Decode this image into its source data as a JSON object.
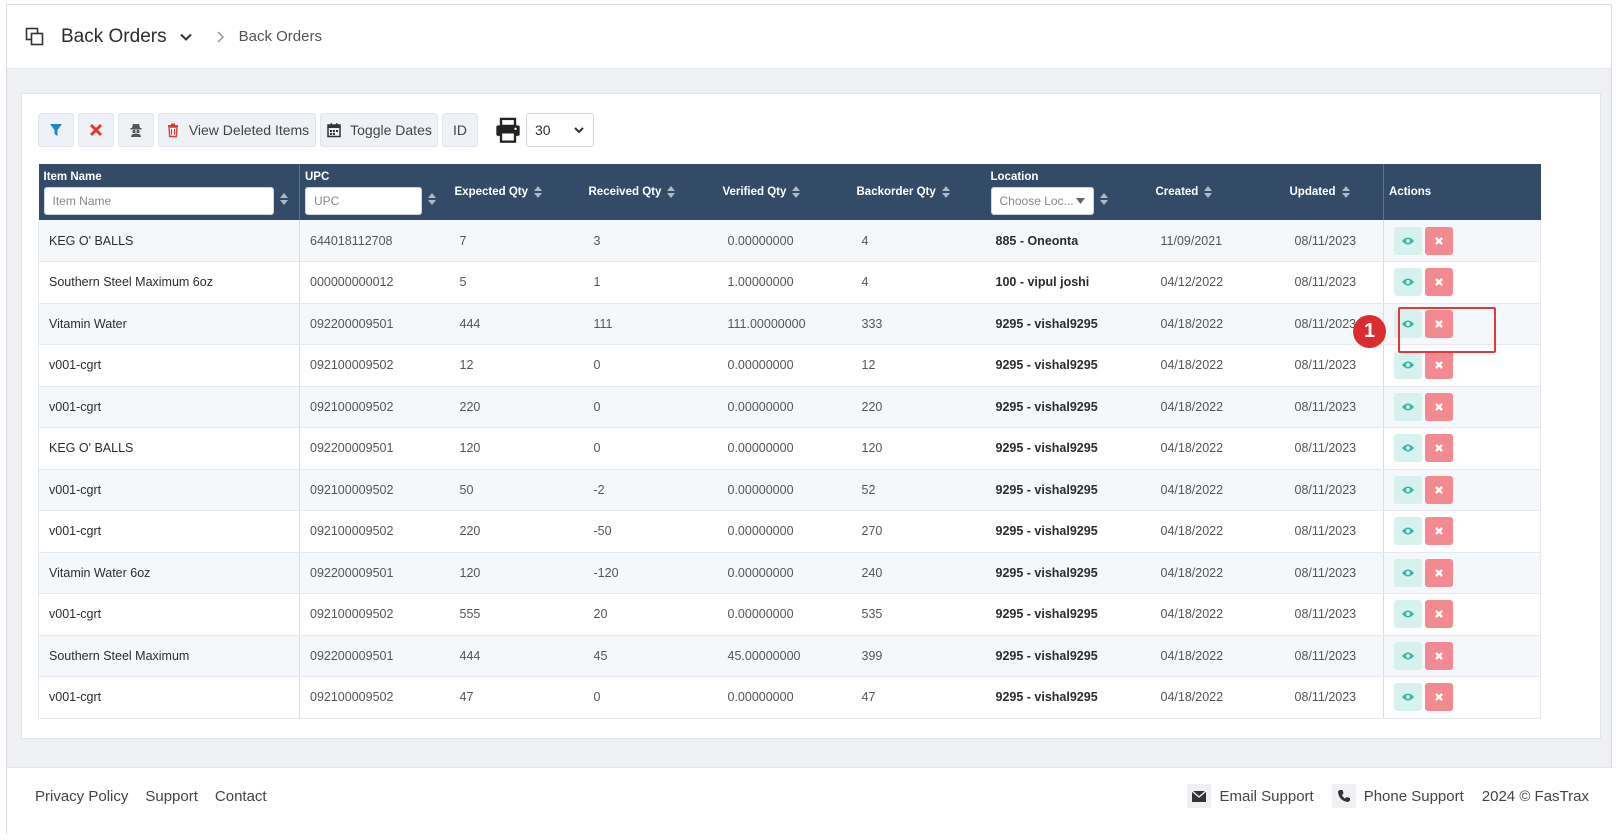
{
  "header": {
    "title": "Back Orders",
    "breadcrumb": "Back Orders"
  },
  "toolbar": {
    "view_deleted_label": "View Deleted Items",
    "toggle_dates_label": "Toggle Dates",
    "id_label": "ID",
    "page_size": "30"
  },
  "table": {
    "columns": {
      "item_name": "Item Name",
      "upc": "UPC",
      "expected": "Expected Qty",
      "received": "Received Qty",
      "verified": "Verified Qty",
      "backorder": "Backorder Qty",
      "location": "Location",
      "created": "Created",
      "updated": "Updated",
      "actions": "Actions"
    },
    "filters": {
      "item_name_placeholder": "Item Name",
      "upc_placeholder": "UPC",
      "location_placeholder": "Choose Loc..."
    },
    "rows": [
      {
        "name": "KEG O' BALLS",
        "upc": "644018112708",
        "expected": "7",
        "received": "3",
        "verified": "0.00000000",
        "backorder": "4",
        "location": "885 - Oneonta",
        "created": "11/09/2021",
        "updated": "08/11/2023"
      },
      {
        "name": "Southern Steel Maximum 6oz",
        "upc": "000000000012",
        "expected": "5",
        "received": "1",
        "verified": "1.00000000",
        "backorder": "4",
        "location": "100 - vipul joshi",
        "created": "04/12/2022",
        "updated": "08/11/2023"
      },
      {
        "name": "Vitamin Water",
        "upc": "092200009501",
        "expected": "444",
        "received": "111",
        "verified": "111.00000000",
        "backorder": "333",
        "location": "9295 - vishal9295",
        "created": "04/18/2022",
        "updated": "08/11/2023"
      },
      {
        "name": "v001-cgrt",
        "upc": "092100009502",
        "expected": "12",
        "received": "0",
        "verified": "0.00000000",
        "backorder": "12",
        "location": "9295 - vishal9295",
        "created": "04/18/2022",
        "updated": "08/11/2023"
      },
      {
        "name": "v001-cgrt",
        "upc": "092100009502",
        "expected": "220",
        "received": "0",
        "verified": "0.00000000",
        "backorder": "220",
        "location": "9295 - vishal9295",
        "created": "04/18/2022",
        "updated": "08/11/2023"
      },
      {
        "name": "KEG O' BALLS",
        "upc": "092200009501",
        "expected": "120",
        "received": "0",
        "verified": "0.00000000",
        "backorder": "120",
        "location": "9295 - vishal9295",
        "created": "04/18/2022",
        "updated": "08/11/2023"
      },
      {
        "name": "v001-cgrt",
        "upc": "092100009502",
        "expected": "50",
        "received": "-2",
        "verified": "0.00000000",
        "backorder": "52",
        "location": "9295 - vishal9295",
        "created": "04/18/2022",
        "updated": "08/11/2023"
      },
      {
        "name": "v001-cgrt",
        "upc": "092100009502",
        "expected": "220",
        "received": "-50",
        "verified": "0.00000000",
        "backorder": "270",
        "location": "9295 - vishal9295",
        "created": "04/18/2022",
        "updated": "08/11/2023"
      },
      {
        "name": "Vitamin Water 6oz",
        "upc": "092200009501",
        "expected": "120",
        "received": "-120",
        "verified": "0.00000000",
        "backorder": "240",
        "location": "9295 - vishal9295",
        "created": "04/18/2022",
        "updated": "08/11/2023"
      },
      {
        "name": "v001-cgrt",
        "upc": "092100009502",
        "expected": "555",
        "received": "20",
        "verified": "0.00000000",
        "backorder": "535",
        "location": "9295 - vishal9295",
        "created": "04/18/2022",
        "updated": "08/11/2023"
      },
      {
        "name": "Southern Steel Maximum",
        "upc": "092200009501",
        "expected": "444",
        "received": "45",
        "verified": "45.00000000",
        "backorder": "399",
        "location": "9295 - vishal9295",
        "created": "04/18/2022",
        "updated": "08/11/2023"
      },
      {
        "name": "v001-cgrt",
        "upc": "092100009502",
        "expected": "47",
        "received": "0",
        "verified": "0.00000000",
        "backorder": "47",
        "location": "9295 - vishal9295",
        "created": "04/18/2022",
        "updated": "08/11/2023"
      }
    ]
  },
  "annotation": {
    "marker": "1"
  },
  "footer": {
    "links": [
      "Privacy Policy",
      "Support",
      "Contact"
    ],
    "email_support": "Email Support",
    "phone_support": "Phone Support",
    "copyright": "2024 © FasTrax"
  },
  "colors": {
    "header_bg": "#334b66",
    "view_button": "#d7f1ef",
    "delete_button": "#f28a8f",
    "highlight": "#e0383d"
  }
}
